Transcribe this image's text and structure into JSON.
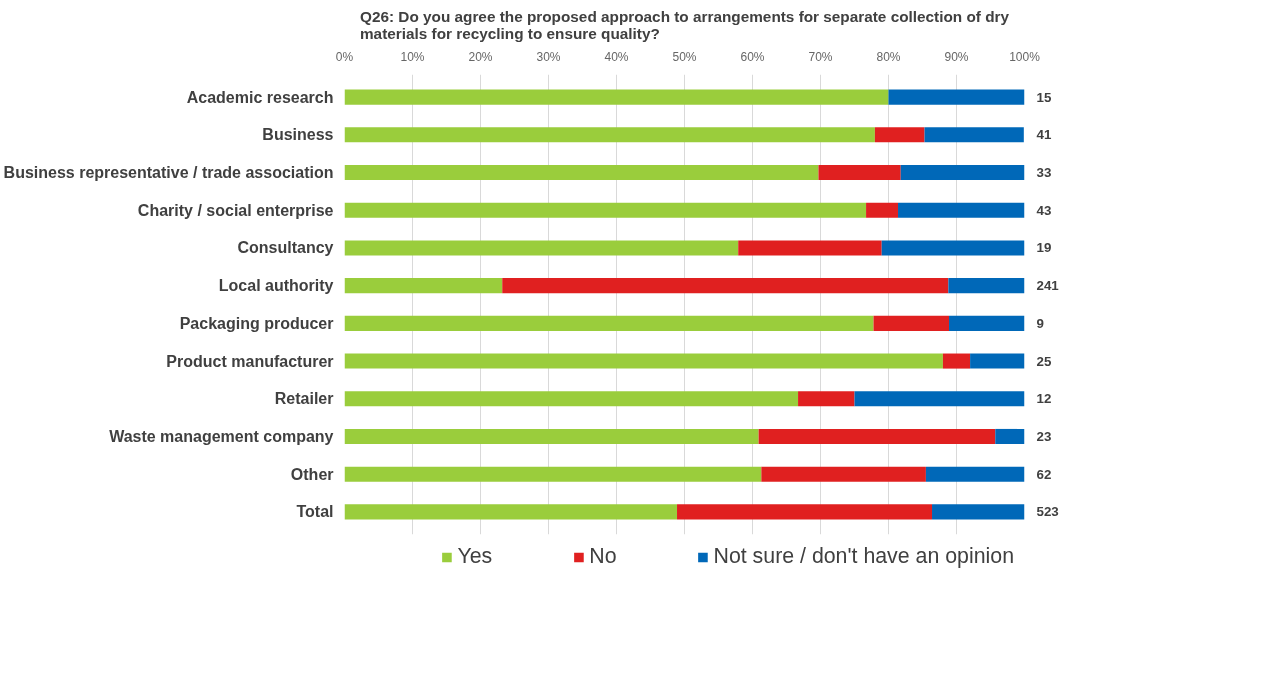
{
  "chart_data": {
    "type": "bar",
    "orientation": "horizontal",
    "stacked": true,
    "title": "Q26: Do you agree the proposed approach to arrangements for separate collection of dry materials for recycling to ensure quality?",
    "categories": [
      "Academic research",
      "Business",
      "Business representative / trade association",
      "Charity / social enterprise",
      "Consultancy",
      "Local authority",
      "Packaging producer",
      "Product manufacturer",
      "Retailer",
      "Waste management company",
      "Other",
      "Total"
    ],
    "series": [
      {
        "name": "Yes",
        "color": "#9acd3c",
        "values": [
          80,
          78.0,
          69.7,
          76.7,
          57.9,
          23.2,
          77.8,
          88,
          66.7,
          60.9,
          61.3,
          48.9
        ]
      },
      {
        "name": "No",
        "color": "#e02020",
        "values": [
          0,
          7.3,
          12.1,
          4.7,
          21.1,
          65.6,
          11.1,
          4,
          8.3,
          34.8,
          24.2,
          37.5
        ]
      },
      {
        "name": "Not sure / don't have an opinion",
        "color": "#0068b8",
        "values": [
          20,
          14.6,
          18.2,
          18.6,
          21.1,
          11.2,
          11.1,
          8,
          25,
          4.3,
          14.5,
          13.6
        ]
      }
    ],
    "xlim": [
      0,
      100
    ],
    "xticks": [
      {
        "value": 0,
        "label": "0%"
      },
      {
        "value": 10,
        "label": "10%"
      },
      {
        "value": 20,
        "label": "20%"
      },
      {
        "value": 30,
        "label": "30%"
      },
      {
        "value": 40,
        "label": "40%"
      },
      {
        "value": 50,
        "label": "50%"
      },
      {
        "value": 60,
        "label": "60%"
      },
      {
        "value": 70,
        "label": "70%"
      },
      {
        "value": 80,
        "label": "80%"
      },
      {
        "value": 90,
        "label": "90%"
      },
      {
        "value": 100,
        "label": "100%"
      }
    ],
    "annotations": [
      "15",
      "41",
      "33",
      "43",
      "19",
      "241",
      "9",
      "25",
      "12",
      "23",
      "62",
      "523"
    ],
    "grid": "x",
    "legend": "bottom"
  }
}
